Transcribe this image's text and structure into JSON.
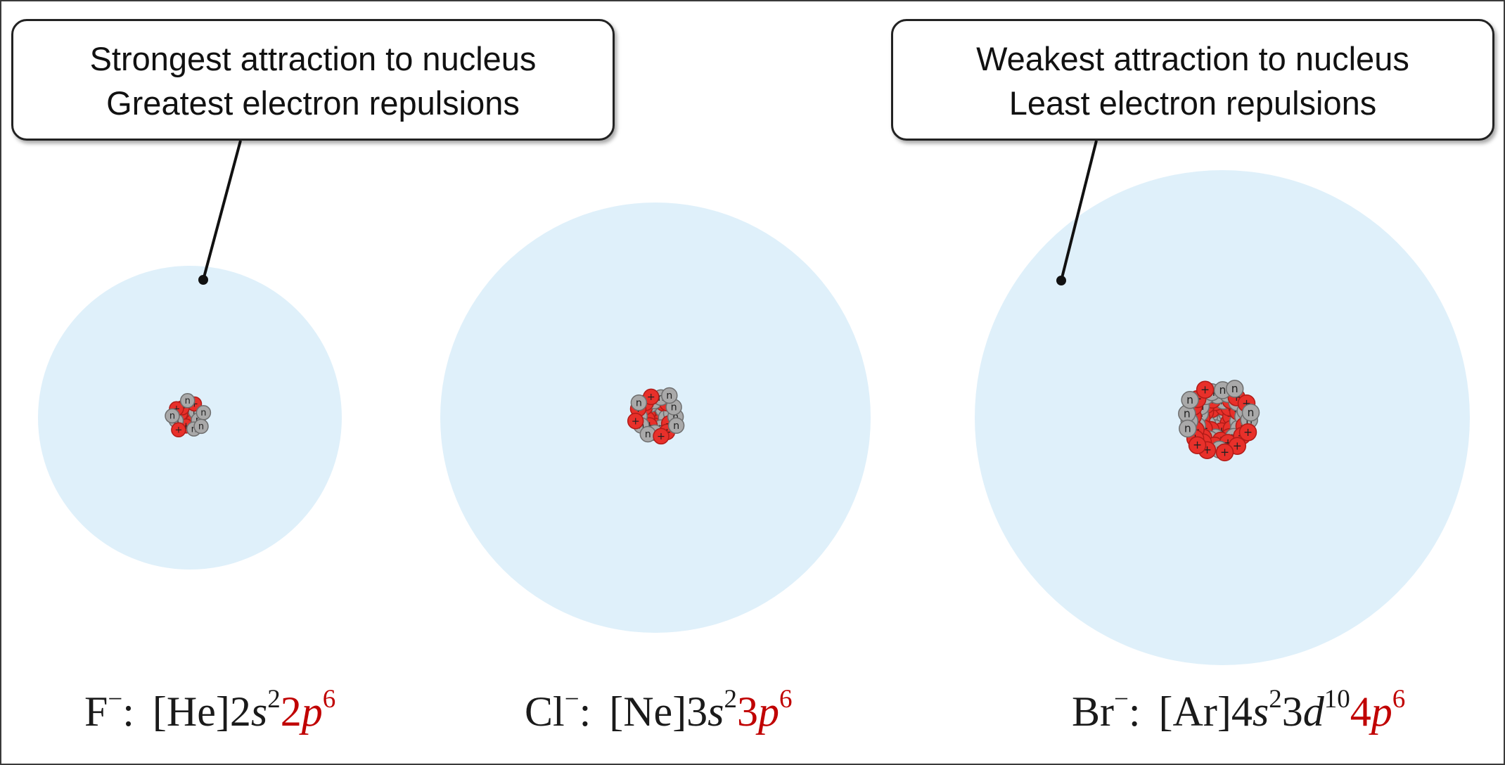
{
  "callouts": {
    "left": {
      "line1": "Strongest attraction to nucleus",
      "line2": "Greatest electron repulsions"
    },
    "right": {
      "line1": "Weakest attraction to nucleus",
      "line2": "Least electron repulsions"
    }
  },
  "ions": [
    {
      "symbol": "F",
      "charge": "−",
      "colon": ":",
      "core": "[He]",
      "parts": [
        {
          "n": "2",
          "l": "s",
          "e": "2",
          "highlight": false
        },
        {
          "n": "2",
          "l": "p",
          "e": "6",
          "highlight": true
        }
      ]
    },
    {
      "symbol": "Cl",
      "charge": "−",
      "colon": ":",
      "core": "[Ne]",
      "parts": [
        {
          "n": "3",
          "l": "s",
          "e": "2",
          "highlight": false
        },
        {
          "n": "3",
          "l": "p",
          "e": "6",
          "highlight": true
        }
      ]
    },
    {
      "symbol": "Br",
      "charge": "−",
      "colon": ":",
      "core": "[Ar]",
      "parts": [
        {
          "n": "4",
          "l": "s",
          "e": "2",
          "highlight": false
        },
        {
          "n": "3",
          "l": "d",
          "e": "10",
          "highlight": false
        },
        {
          "n": "4",
          "l": "p",
          "e": "6",
          "highlight": true
        }
      ]
    }
  ],
  "nucleus_labels": {
    "proton": "+",
    "neutron": "n"
  },
  "colors": {
    "electron_cloud": "#dff0fa",
    "proton": "#e8302a",
    "neutron": "#a9a9a9",
    "highlight": "#c00000"
  }
}
